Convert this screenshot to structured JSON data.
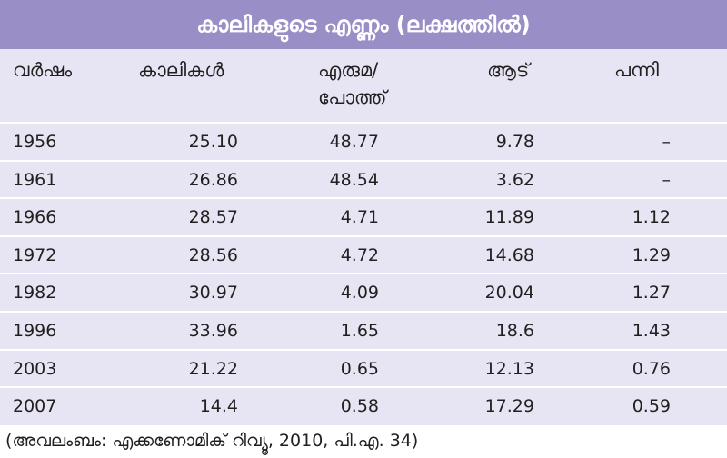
{
  "table": {
    "title": "കാലികളുടെ എണ്ണം (ലക്ഷത്തിൽ)",
    "headers": {
      "year": "വർഷം",
      "cattle": "കാലികൾ",
      "buffalo_line1": "എരുമ/",
      "buffalo_line2": "പോത്ത്",
      "goat": "ആട്",
      "pig": "പന്നി"
    },
    "rows": [
      {
        "year": "1956",
        "cattle": "25.10",
        "buffalo": "48.77",
        "goat": "9.78",
        "pig": "–"
      },
      {
        "year": "1961",
        "cattle": "26.86",
        "buffalo": "48.54",
        "goat": "3.62",
        "pig": "–"
      },
      {
        "year": "1966",
        "cattle": "28.57",
        "buffalo": "4.71",
        "goat": "11.89",
        "pig": "1.12"
      },
      {
        "year": "1972",
        "cattle": "28.56",
        "buffalo": "4.72",
        "goat": "14.68",
        "pig": "1.29"
      },
      {
        "year": "1982",
        "cattle": "30.97",
        "buffalo": "4.09",
        "goat": "20.04",
        "pig": "1.27"
      },
      {
        "year": "1996",
        "cattle": "33.96",
        "buffalo": "1.65",
        "goat": "18.6",
        "pig": "1.43"
      },
      {
        "year": "2003",
        "cattle": "21.22",
        "buffalo": "0.65",
        "goat": "12.13",
        "pig": "0.76"
      },
      {
        "year": "2007",
        "cattle": "14.4",
        "buffalo": "0.58",
        "goat": "17.29",
        "pig": "0.59"
      }
    ],
    "source": "(അവലംബം: എക്കണോമിക് റിവ്യൂ, 2010, പി.എ. 34)"
  },
  "colors": {
    "title_bg": "#9a8ec7",
    "table_bg": "#e7e5f3",
    "row_divider": "#ffffff",
    "text": "#231f20"
  }
}
